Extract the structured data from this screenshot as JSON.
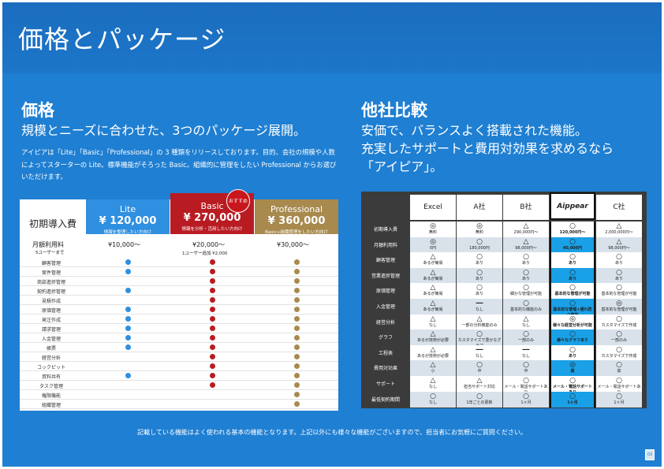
{
  "header": {
    "title": "価格とパッケージ"
  },
  "pricing": {
    "heading": "価格",
    "subheading": "規模とニーズに合わせた、3つのパッケージ展開。",
    "description": "アイピアは「Lite」「Basic」「Professional」の 3 種類をリリースしております。目的、会社の規模や人数によってスターターの Lite。標準機能がそろった Basic。組織的に管理をしたい Professional からお選びいただけます。",
    "initial_label": "初期導入費",
    "monthly_label": "月額利用料",
    "monthly_sub": "5ユーザーまで",
    "recommend": "おすすめ",
    "extra_user": "1ユーザー追加 ¥2,000",
    "plans": [
      {
        "name": "Lite",
        "initial": "¥ 120,000",
        "subtitle": "情報を整理したい方向け",
        "monthly": "¥10,000～",
        "color": "#2f8fe0"
      },
      {
        "name": "Basic",
        "initial": "¥ 270,000",
        "subtitle": "情報を分析・活用したい方向け",
        "monthly": "¥20,000～",
        "color": "#b81c22"
      },
      {
        "name": "Professional",
        "initial": "¥ 360,000",
        "subtitle": "Basic+組織管理をしたい方向け",
        "monthly": "¥30,000～",
        "color": "#a88a4e"
      }
    ],
    "features": [
      {
        "label": "顧客管理",
        "lite": true,
        "basic": true,
        "pro": true
      },
      {
        "label": "案件管理",
        "lite": true,
        "basic": true,
        "pro": true
      },
      {
        "label": "商談進捗管理",
        "lite": false,
        "basic": true,
        "pro": true
      },
      {
        "label": "契約進捗管理",
        "lite": true,
        "basic": true,
        "pro": true
      },
      {
        "label": "見積作成",
        "lite": false,
        "basic": true,
        "pro": true
      },
      {
        "label": "原価管理",
        "lite": true,
        "basic": true,
        "pro": true
      },
      {
        "label": "発注作成",
        "lite": true,
        "basic": true,
        "pro": true
      },
      {
        "label": "請求管理",
        "lite": true,
        "basic": true,
        "pro": true
      },
      {
        "label": "入金管理",
        "lite": true,
        "basic": true,
        "pro": true
      },
      {
        "label": "帳票",
        "lite": true,
        "basic": true,
        "pro": true
      },
      {
        "label": "経営分析",
        "lite": false,
        "basic": true,
        "pro": true
      },
      {
        "label": "コックピット",
        "lite": false,
        "basic": true,
        "pro": true
      },
      {
        "label": "資料共有",
        "lite": true,
        "basic": true,
        "pro": true
      },
      {
        "label": "タスク管理",
        "lite": false,
        "basic": true,
        "pro": true
      },
      {
        "label": "権限機能",
        "lite": false,
        "basic": false,
        "pro": true
      },
      {
        "label": "組織管理",
        "lite": false,
        "basic": false,
        "pro": true
      }
    ]
  },
  "comparison": {
    "heading": "他社比較",
    "sub1": "安価で、バランスよく搭載された機能。",
    "sub2": "充実したサポートと費用対効果を求めるなら",
    "sub3": "「アイピア」。",
    "columns": [
      "Excel",
      "A社",
      "B社",
      "Aippear",
      "C社"
    ],
    "rows": [
      {
        "label": "初期導入費",
        "cells": [
          [
            "◎",
            "無料"
          ],
          [
            "◎",
            "無料"
          ],
          [
            "△",
            "290,000円～"
          ],
          [
            "○",
            "120,000円～"
          ],
          [
            "△",
            "2,000,000円～"
          ]
        ]
      },
      {
        "label": "月額利用料",
        "cells": [
          [
            "◎",
            "0円"
          ],
          [
            "○",
            "180,000円"
          ],
          [
            "△",
            "98,000円～"
          ],
          [
            "○",
            "40,000円"
          ],
          [
            "△",
            "98,000円～"
          ]
        ]
      },
      {
        "label": "顧客管理",
        "cells": [
          [
            "△",
            "あるが簡易"
          ],
          [
            "○",
            "あり"
          ],
          [
            "○",
            "あり"
          ],
          [
            "○",
            "あり"
          ],
          [
            "○",
            "あり"
          ]
        ]
      },
      {
        "label": "営業進捗管理",
        "cells": [
          [
            "△",
            "あるが簡易"
          ],
          [
            "○",
            "あり"
          ],
          [
            "○",
            "あり"
          ],
          [
            "○",
            "あり"
          ],
          [
            "○",
            "あり"
          ]
        ]
      },
      {
        "label": "原価管理",
        "cells": [
          [
            "△",
            "あるが簡易"
          ],
          [
            "○",
            "あり"
          ],
          [
            "○",
            "細かな管理が可能"
          ],
          [
            "○",
            "基本的な管理が可能"
          ],
          [
            "○",
            "基本的な管理が可能"
          ]
        ]
      },
      {
        "label": "入金管理",
        "cells": [
          [
            "△",
            "あるが簡易"
          ],
          [
            "―",
            "なし"
          ],
          [
            "○",
            "基本的な機能のみ"
          ],
          [
            "○",
            "基本的な管理+遅れ防止機能"
          ],
          [
            "◎",
            "基本的な管理が可能"
          ]
        ]
      },
      {
        "label": "経営分析",
        "cells": [
          [
            "△",
            "なし"
          ],
          [
            "△",
            "一部の分析機能のみ"
          ],
          [
            "△",
            "なし"
          ],
          [
            "◎",
            "様々な経営分析が可能"
          ],
          [
            "○",
            "カスタマイズで作成"
          ]
        ]
      },
      {
        "label": "グラフ",
        "cells": [
          [
            "△",
            "あるが技術が必要"
          ],
          [
            "○",
            "カスタマイズで豊かなグラフ"
          ],
          [
            "○",
            "一部のみ"
          ],
          [
            "○",
            "様々なグラフあり"
          ],
          [
            "○",
            "一部のみ"
          ]
        ]
      },
      {
        "label": "工程表",
        "cells": [
          [
            "△",
            "あるが技術が必要"
          ],
          [
            "―",
            "なし"
          ],
          [
            "―",
            "なし"
          ],
          [
            "○",
            "あり"
          ],
          [
            "○",
            "カスタマイズで作成"
          ]
        ]
      },
      {
        "label": "費用対効果",
        "cells": [
          [
            "△",
            "小"
          ],
          [
            "○",
            "中"
          ],
          [
            "○",
            "中"
          ],
          [
            "◎",
            "高"
          ],
          [
            "○",
            "高"
          ]
        ]
      },
      {
        "label": "サポート",
        "cells": [
          [
            "△",
            "なし"
          ],
          [
            "△",
            "担当サポート対応"
          ],
          [
            "○",
            "メール・電話サポートあり"
          ],
          [
            "○",
            "メール・電話サポートあり"
          ],
          [
            "○",
            "メール・電話サポートあり"
          ]
        ]
      },
      {
        "label": "最低契約期間",
        "cells": [
          [
            "○",
            "なし"
          ],
          [
            "○",
            "1年ごとの更新"
          ],
          [
            "○",
            "1ヶ月"
          ],
          [
            "○",
            "1ヶ月"
          ],
          [
            "○",
            "1ヶ月"
          ]
        ]
      }
    ]
  },
  "footer": {
    "note": "記載している機能はよく使われる基本の機能となります。上記以外にも様々な機能がございますので、担当者にお気軽にご質問ください。",
    "page": "03"
  },
  "colors": {
    "panel": "#1f7fd2",
    "lite": "#2f8fe0",
    "basic": "#b81c22",
    "pro": "#a88a4e",
    "highlight": "#1aa0e6"
  }
}
